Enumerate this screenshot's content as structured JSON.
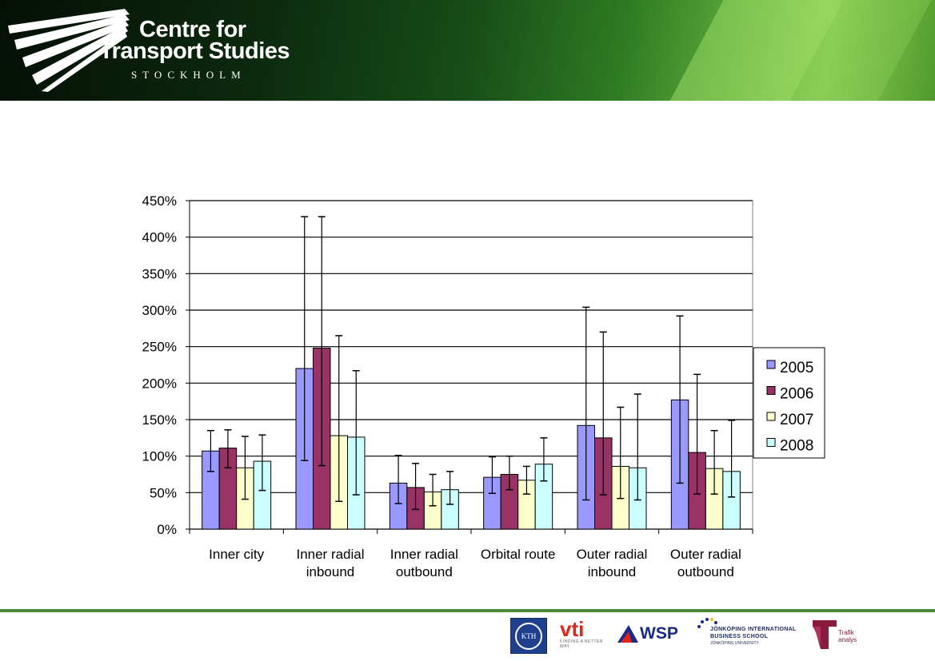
{
  "header": {
    "title_line1": "Centre for",
    "title_line2": "Transport Studies",
    "subtitle": "STOCKHOLM"
  },
  "colors": {
    "series": [
      "#9999ff",
      "#993366",
      "#ffffcc",
      "#ccffff"
    ],
    "footer_line": "#4a8a3a"
  },
  "chart_data": {
    "type": "bar",
    "title": "",
    "xlabel": "",
    "ylabel": "",
    "ylim": [
      0,
      4.5
    ],
    "y_ticks": [
      "0%",
      "50%",
      "100%",
      "150%",
      "200%",
      "250%",
      "300%",
      "350%",
      "400%",
      "450%"
    ],
    "categories": [
      [
        "Inner city"
      ],
      [
        "Inner radial",
        "inbound"
      ],
      [
        "Inner radial",
        "outbound"
      ],
      [
        "Orbital route"
      ],
      [
        "Outer radial",
        "inbound"
      ],
      [
        "Outer radial",
        "outbound"
      ]
    ],
    "series": [
      {
        "name": "2005",
        "values": [
          1.07,
          2.2,
          0.63,
          0.71,
          1.42,
          1.77
        ],
        "error_low": [
          0.79,
          0.94,
          0.35,
          0.49,
          0.4,
          0.63
        ],
        "error_high": [
          1.35,
          4.28,
          1.01,
          0.99,
          3.04,
          2.92
        ]
      },
      {
        "name": "2006",
        "values": [
          1.11,
          2.48,
          0.57,
          0.75,
          1.25,
          1.05
        ],
        "error_low": [
          0.84,
          0.87,
          0.27,
          0.54,
          0.47,
          0.48
        ],
        "error_high": [
          1.36,
          4.28,
          0.9,
          1.0,
          2.7,
          2.12
        ]
      },
      {
        "name": "2007",
        "values": [
          0.84,
          1.28,
          0.51,
          0.67,
          0.86,
          0.83
        ],
        "error_low": [
          0.41,
          0.38,
          0.32,
          0.48,
          0.42,
          0.48
        ],
        "error_high": [
          1.27,
          2.65,
          0.75,
          0.86,
          1.67,
          1.35
        ]
      },
      {
        "name": "2008",
        "values": [
          0.93,
          1.26,
          0.54,
          0.89,
          0.84,
          0.79
        ],
        "error_low": [
          0.53,
          0.47,
          0.34,
          0.66,
          0.4,
          0.44
        ],
        "error_high": [
          1.29,
          2.17,
          0.79,
          1.25,
          1.85,
          1.49
        ]
      }
    ],
    "grid": true,
    "legend_position": "right"
  },
  "footer": {
    "kth_label": "KTH",
    "vti_name": "vti",
    "vti_tagline": "FINDING A BETTER WAY",
    "wsp_name": "WSP",
    "jibs_line1": "JÖNKÖPING INTERNATIONAL",
    "jibs_line2": "BUSINESS SCHOOL",
    "jibs_line3": "JÖNKÖPING UNIVERSITY",
    "trafik_line1": "Trafik",
    "trafik_line2": "analys"
  }
}
